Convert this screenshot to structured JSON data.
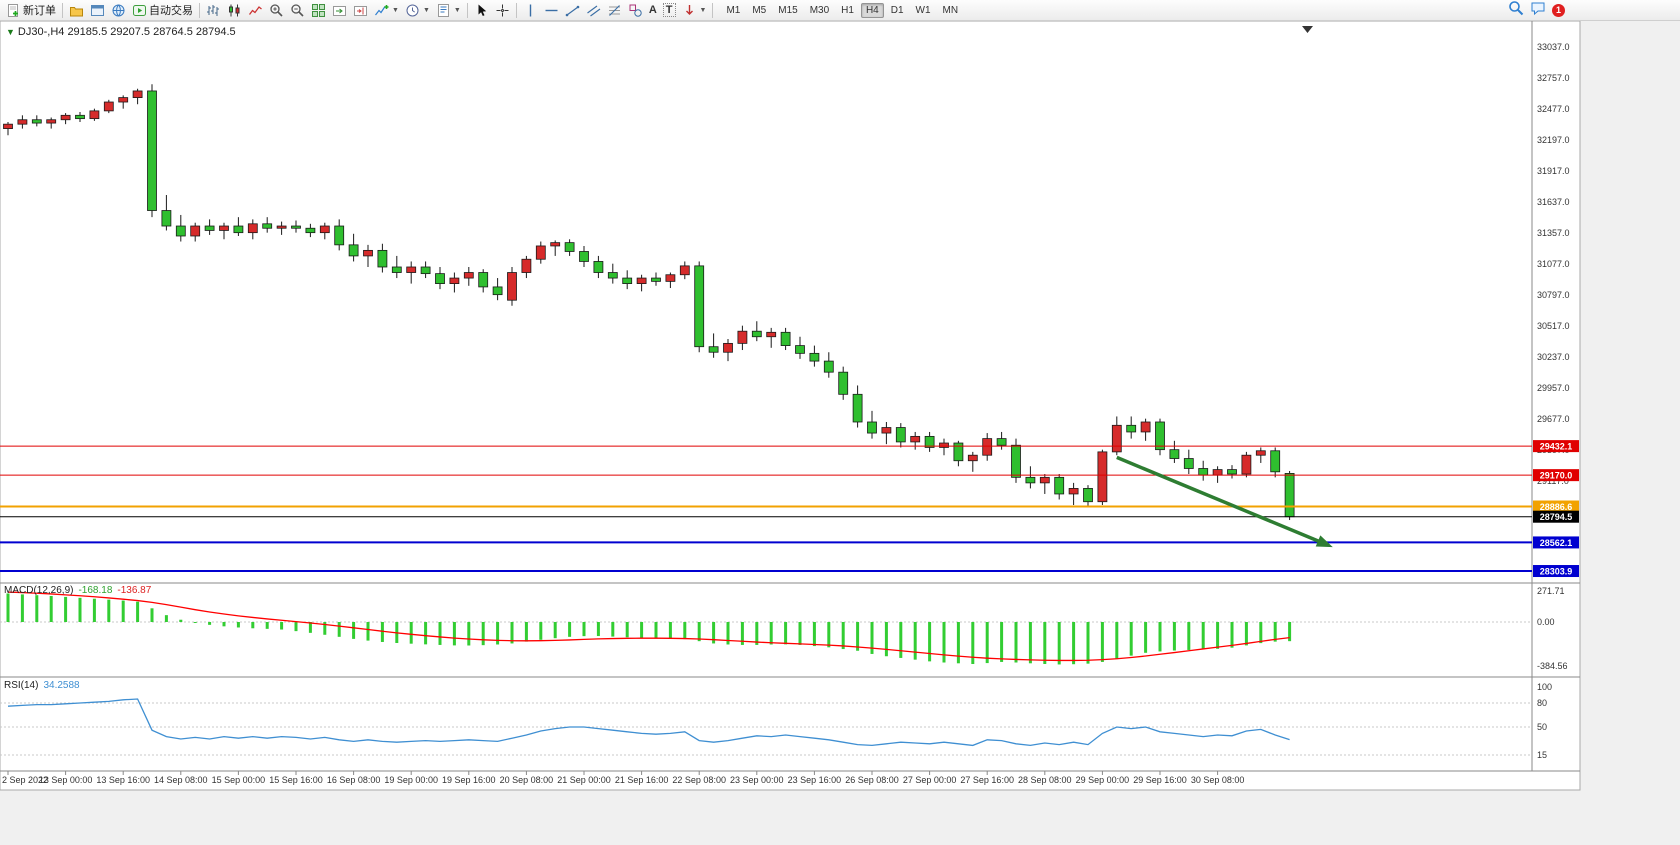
{
  "toolbar": {
    "new_order_label": "新订单",
    "autotrading_label": "自动交易",
    "timeframes": [
      "M1",
      "M5",
      "M15",
      "M30",
      "H1",
      "H4",
      "D1",
      "W1",
      "MN"
    ],
    "active_timeframe": "H4",
    "notification_count": "1"
  },
  "chart": {
    "symbol_line": "DJ30-,H4 29185.5 29207.5 28764.5 28794.5"
  },
  "chart_data": {
    "type": "candlestick",
    "symbol": "DJ30-",
    "timeframe": "H4",
    "colors": {
      "bull": "#d62b2b",
      "bear": "#2fbf2f",
      "wick": "#1a1a1a",
      "macd_hist": "#32cd32",
      "macd_signal": "#ff0000",
      "rsi_line": "#3f8fd2",
      "annotation": "#2e7d32",
      "level_red": "#e00000",
      "level_orange": "#f2a200",
      "level_blue": "#0000d0",
      "level_black": "#000000"
    },
    "price_axis": {
      "top_value": 33037.0,
      "step": 280,
      "labels": [
        33037.0,
        32757.0,
        32477.0,
        32197.0,
        31917.0,
        31637.0,
        31357.0,
        31077.0,
        30797.0,
        30517.0,
        30237.0,
        29957.0,
        29677.0,
        29397.0,
        29117.0,
        28837.0,
        28557.0,
        28277.0
      ]
    },
    "levels": [
      {
        "value": "29432.1",
        "price": 29432.1,
        "color": "#e00000",
        "width": 1,
        "type": "resistance-line"
      },
      {
        "value": "29170.0",
        "price": 29170.0,
        "color": "#e00000",
        "width": 1,
        "type": "resistance-line"
      },
      {
        "value": "28886.6",
        "price": 28886.6,
        "color": "#f2a200",
        "width": 2,
        "type": "support-line"
      },
      {
        "value": "28794.5",
        "price": 28794.5,
        "color": "#000000",
        "width": 1,
        "type": "current-price-line"
      },
      {
        "value": "28562.1",
        "price": 28562.1,
        "color": "#0000d0",
        "width": 2,
        "type": "support-line"
      },
      {
        "value": "28303.9",
        "price": 28303.9,
        "color": "#0000d0",
        "width": 2,
        "type": "support-line"
      }
    ],
    "candles": [
      [
        32300,
        32360,
        32240,
        32340
      ],
      [
        32340,
        32420,
        32300,
        32380
      ],
      [
        32380,
        32420,
        32320,
        32350
      ],
      [
        32350,
        32400,
        32300,
        32380
      ],
      [
        32380,
        32440,
        32340,
        32420
      ],
      [
        32420,
        32450,
        32360,
        32390
      ],
      [
        32390,
        32480,
        32370,
        32460
      ],
      [
        32460,
        32560,
        32440,
        32540
      ],
      [
        32540,
        32600,
        32480,
        32580
      ],
      [
        32580,
        32660,
        32520,
        32640
      ],
      [
        32640,
        32700,
        31500,
        31560
      ],
      [
        31560,
        31700,
        31380,
        31420
      ],
      [
        31420,
        31520,
        31280,
        31330
      ],
      [
        31330,
        31450,
        31280,
        31420
      ],
      [
        31420,
        31480,
        31340,
        31380
      ],
      [
        31380,
        31450,
        31300,
        31420
      ],
      [
        31420,
        31500,
        31330,
        31360
      ],
      [
        31360,
        31480,
        31300,
        31440
      ],
      [
        31440,
        31500,
        31360,
        31400
      ],
      [
        31400,
        31460,
        31340,
        31420
      ],
      [
        31420,
        31470,
        31360,
        31400
      ],
      [
        31400,
        31440,
        31320,
        31360
      ],
      [
        31360,
        31450,
        31300,
        31420
      ],
      [
        31420,
        31480,
        31200,
        31250
      ],
      [
        31250,
        31350,
        31100,
        31150
      ],
      [
        31150,
        31250,
        31050,
        31200
      ],
      [
        31200,
        31260,
        31000,
        31050
      ],
      [
        31050,
        31150,
        30950,
        31000
      ],
      [
        31000,
        31100,
        30900,
        31050
      ],
      [
        31050,
        31100,
        30950,
        30990
      ],
      [
        30990,
        31050,
        30850,
        30900
      ],
      [
        30900,
        31000,
        30820,
        30950
      ],
      [
        30950,
        31050,
        30880,
        31000
      ],
      [
        31000,
        31030,
        30820,
        30870
      ],
      [
        30870,
        30950,
        30750,
        30800
      ],
      [
        30750,
        31050,
        30700,
        31000
      ],
      [
        31000,
        31150,
        30950,
        31120
      ],
      [
        31120,
        31280,
        31080,
        31240
      ],
      [
        31240,
        31290,
        31150,
        31270
      ],
      [
        31270,
        31300,
        31150,
        31190
      ],
      [
        31190,
        31240,
        31050,
        31100
      ],
      [
        31100,
        31150,
        30950,
        31000
      ],
      [
        31000,
        31080,
        30900,
        30950
      ],
      [
        30950,
        31020,
        30850,
        30900
      ],
      [
        30900,
        30980,
        30830,
        30950
      ],
      [
        30950,
        31000,
        30880,
        30920
      ],
      [
        30920,
        31000,
        30860,
        30980
      ],
      [
        30980,
        31100,
        30940,
        31060
      ],
      [
        31060,
        31100,
        30280,
        30330
      ],
      [
        30330,
        30450,
        30230,
        30280
      ],
      [
        30280,
        30400,
        30200,
        30360
      ],
      [
        30360,
        30520,
        30300,
        30470
      ],
      [
        30470,
        30560,
        30380,
        30420
      ],
      [
        30420,
        30500,
        30320,
        30460
      ],
      [
        30460,
        30500,
        30300,
        30340
      ],
      [
        30340,
        30420,
        30220,
        30270
      ],
      [
        30270,
        30340,
        30150,
        30200
      ],
      [
        30200,
        30280,
        30050,
        30100
      ],
      [
        30100,
        30150,
        29850,
        29900
      ],
      [
        29900,
        29980,
        29600,
        29650
      ],
      [
        29650,
        29750,
        29500,
        29550
      ],
      [
        29550,
        29650,
        29450,
        29600
      ],
      [
        29600,
        29640,
        29420,
        29470
      ],
      [
        29470,
        29560,
        29400,
        29520
      ],
      [
        29520,
        29560,
        29380,
        29420
      ],
      [
        29420,
        29500,
        29350,
        29460
      ],
      [
        29460,
        29480,
        29250,
        29300
      ],
      [
        29300,
        29380,
        29200,
        29350
      ],
      [
        29350,
        29550,
        29300,
        29500
      ],
      [
        29500,
        29560,
        29400,
        29440
      ],
      [
        29440,
        29500,
        29100,
        29150
      ],
      [
        29150,
        29250,
        29050,
        29100
      ],
      [
        29100,
        29180,
        29000,
        29150
      ],
      [
        29150,
        29180,
        28950,
        29000
      ],
      [
        29000,
        29100,
        28900,
        29050
      ],
      [
        29050,
        29080,
        28880,
        28930
      ],
      [
        28930,
        29400,
        28900,
        29380
      ],
      [
        29380,
        29700,
        29350,
        29620
      ],
      [
        29620,
        29700,
        29500,
        29560
      ],
      [
        29560,
        29680,
        29480,
        29650
      ],
      [
        29650,
        29680,
        29350,
        29400
      ],
      [
        29400,
        29480,
        29280,
        29320
      ],
      [
        29320,
        29400,
        29180,
        29230
      ],
      [
        29230,
        29300,
        29120,
        29170
      ],
      [
        29170,
        29250,
        29100,
        29220
      ],
      [
        29220,
        29260,
        29140,
        29180
      ],
      [
        29180,
        29380,
        29150,
        29350
      ],
      [
        29350,
        29420,
        29280,
        29390
      ],
      [
        29390,
        29420,
        29150,
        29200
      ],
      [
        29185.5,
        29207.5,
        28764.5,
        28794.5
      ]
    ],
    "macd": {
      "label": "MACD(12,26,9)",
      "value": "-168.18",
      "signal_value": "-136.87",
      "axis_labels": [
        271.71,
        0,
        -384.56
      ],
      "histogram": [
        250,
        242,
        235,
        228,
        220,
        212,
        204,
        196,
        188,
        178,
        120,
        60,
        20,
        -8,
        -25,
        -38,
        -48,
        -55,
        -60,
        -66,
        -80,
        -95,
        -112,
        -130,
        -148,
        -163,
        -175,
        -184,
        -190,
        -196,
        -201,
        -205,
        -206,
        -203,
        -197,
        -188,
        -172,
        -156,
        -142,
        -130,
        -124,
        -123,
        -128,
        -134,
        -141,
        -146,
        -148,
        -150,
        -168,
        -188,
        -197,
        -201,
        -201,
        -197,
        -196,
        -201,
        -211,
        -222,
        -237,
        -252,
        -280,
        -300,
        -315,
        -330,
        -345,
        -355,
        -362,
        -368,
        -360,
        -350,
        -355,
        -362,
        -368,
        -372,
        -370,
        -365,
        -350,
        -325,
        -295,
        -270,
        -258,
        -250,
        -245,
        -240,
        -235,
        -225,
        -205,
        -185,
        -172,
        -168
      ],
      "signal": [
        262,
        258,
        252,
        246,
        238,
        230,
        221,
        211,
        200,
        188,
        172,
        152,
        130,
        108,
        88,
        70,
        54,
        40,
        27,
        15,
        3,
        -9,
        -22,
        -36,
        -51,
        -66,
        -81,
        -95,
        -108,
        -120,
        -131,
        -141,
        -149,
        -156,
        -161,
        -164,
        -165,
        -164,
        -161,
        -157,
        -152,
        -148,
        -145,
        -143,
        -142,
        -142,
        -143,
        -145,
        -149,
        -155,
        -162,
        -169,
        -176,
        -182,
        -187,
        -192,
        -197,
        -203,
        -210,
        -219,
        -229,
        -240,
        -252,
        -264,
        -276,
        -288,
        -299,
        -309,
        -317,
        -323,
        -328,
        -332,
        -335,
        -337,
        -337,
        -335,
        -330,
        -322,
        -311,
        -298,
        -283,
        -268,
        -252,
        -236,
        -220,
        -205,
        -188,
        -170,
        -152,
        -137
      ]
    },
    "rsi": {
      "label": "RSI(14)",
      "value": "34.2588",
      "axis_labels": [
        100,
        80,
        50,
        15
      ],
      "levels": [
        80,
        50,
        15
      ],
      "values": [
        76,
        77,
        78,
        78,
        79,
        80,
        81,
        82,
        84,
        85,
        46,
        38,
        35,
        37,
        35,
        38,
        36,
        38,
        36,
        38,
        37,
        35,
        37,
        34,
        32,
        34,
        32,
        31,
        32,
        33,
        32,
        33,
        34,
        33,
        32,
        36,
        40,
        45,
        48,
        50,
        50,
        48,
        46,
        44,
        42,
        41,
        42,
        44,
        33,
        31,
        33,
        36,
        39,
        38,
        40,
        38,
        36,
        34,
        31,
        28,
        27,
        29,
        31,
        30,
        29,
        31,
        29,
        27,
        34,
        33,
        29,
        27,
        30,
        28,
        31,
        28,
        42,
        50,
        48,
        50,
        44,
        42,
        40,
        38,
        40,
        39,
        45,
        47,
        40,
        34.26
      ]
    },
    "time_labels": [
      "2 Sep 2022",
      "13 Sep 00:00",
      "13 Sep 16:00",
      "14 Sep 08:00",
      "15 Sep 00:00",
      "15 Sep 16:00",
      "16 Sep 08:00",
      "19 Sep 00:00",
      "19 Sep 16:00",
      "20 Sep 08:00",
      "21 Sep 00:00",
      "21 Sep 16:00",
      "22 Sep 08:00",
      "23 Sep 00:00",
      "23 Sep 16:00",
      "26 Sep 08:00",
      "27 Sep 00:00",
      "27 Sep 16:00",
      "28 Sep 08:00",
      "29 Sep 00:00",
      "29 Sep 16:00",
      "30 Sep 08:00"
    ],
    "annotation_arrow": {
      "from_index": 77,
      "from_price": 29330,
      "to_index": 92,
      "to_price": 28520
    }
  }
}
